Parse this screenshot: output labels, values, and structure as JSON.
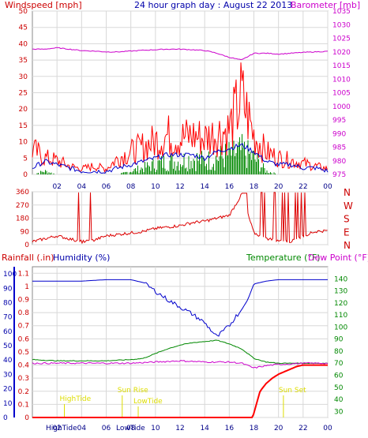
{
  "chart_data": [
    {
      "type": "line",
      "title": "24 hour graph day : August 22 2013",
      "ylabel_left": "Windspeed [mph]",
      "ylabel_right": "Barometer [mb]",
      "x_ticks": [
        "02",
        "04",
        "06",
        "08",
        "10",
        "12",
        "14",
        "16",
        "18",
        "20",
        "22",
        "00"
      ],
      "ylim_left": [
        0,
        50
      ],
      "y_ticks_left": [
        "0",
        "5",
        "10",
        "15",
        "20",
        "25",
        "30",
        "35",
        "40",
        "45",
        "50"
      ],
      "ylim_right": [
        975,
        1035
      ],
      "y_ticks_right": [
        "975",
        "980",
        "985",
        "990",
        "995",
        "1000",
        "1005",
        "1010",
        "1015",
        "1020",
        "1025",
        "1030",
        "1035"
      ],
      "grid": true,
      "colors": {
        "gust": "#ff0000",
        "average": "#0000cc",
        "speed": "#008800",
        "barometer": "#cc00cc"
      },
      "series": [
        {
          "key": "gust",
          "x": [
            0,
            1,
            2,
            3,
            4,
            5,
            6,
            7,
            8,
            9,
            10,
            11,
            12,
            13,
            14,
            15,
            16,
            17,
            18,
            19,
            20,
            21,
            22,
            23,
            24
          ],
          "values": [
            9,
            6,
            5,
            3,
            2,
            3,
            2,
            6,
            8,
            10,
            12,
            14,
            13,
            14,
            13,
            15,
            16,
            28,
            14,
            8,
            6,
            5,
            4,
            3,
            2
          ]
        },
        {
          "key": "average",
          "x": [
            0,
            1,
            2,
            3,
            4,
            5,
            6,
            7,
            8,
            9,
            10,
            11,
            12,
            13,
            14,
            15,
            16,
            17,
            18,
            19,
            20,
            21,
            22,
            23,
            24
          ],
          "values": [
            2,
            4,
            3,
            2,
            1,
            1,
            1,
            2,
            3,
            4,
            5,
            6,
            6,
            6,
            5,
            7,
            8,
            9,
            7,
            4,
            3,
            3,
            2,
            2,
            1
          ]
        },
        {
          "key": "speed",
          "x": [
            0,
            1,
            2,
            3,
            4,
            5,
            6,
            7,
            8,
            9,
            10,
            11,
            12,
            13,
            14,
            15,
            16,
            17,
            18,
            19,
            20,
            21,
            22,
            23,
            24
          ],
          "values": [
            0,
            1,
            0,
            0,
            0,
            0,
            0,
            0,
            1,
            2,
            3,
            4,
            4,
            5,
            4,
            5,
            6,
            7,
            5,
            1,
            0,
            0,
            0,
            0,
            0
          ]
        },
        {
          "key": "barometer",
          "x": [
            0,
            1,
            2,
            3,
            4,
            5,
            6,
            7,
            8,
            9,
            10,
            11,
            12,
            13,
            14,
            15,
            16,
            17,
            18,
            19,
            20,
            21,
            22,
            23,
            24
          ],
          "values": [
            1021,
            1021,
            1021.5,
            1021,
            1020.5,
            1020.3,
            1020,
            1020,
            1020.3,
            1020.6,
            1020.8,
            1021,
            1021,
            1020.8,
            1020.5,
            1019.5,
            1018,
            1017,
            1019.5,
            1019.5,
            1019.2,
            1019.5,
            1019.8,
            1020,
            1020.2
          ]
        }
      ]
    },
    {
      "type": "line",
      "ylim": [
        0,
        360
      ],
      "y_ticks": [
        "0",
        "90",
        "180",
        "270",
        "360"
      ],
      "compass": [
        "N",
        "W",
        "S",
        "E",
        "N"
      ],
      "x_ticks": [
        "02",
        "04",
        "06",
        "08",
        "10",
        "12",
        "14",
        "16",
        "18",
        "20",
        "22",
        "00"
      ],
      "grid": true,
      "color": "#dd0000",
      "series": [
        {
          "key": "direction",
          "x": [
            0,
            1,
            2,
            3,
            4,
            5,
            6,
            7,
            8,
            9,
            10,
            11,
            12,
            13,
            14,
            15,
            16,
            17,
            18,
            19,
            20,
            21,
            22,
            23,
            24
          ],
          "values": [
            20,
            40,
            60,
            40,
            20,
            30,
            60,
            70,
            80,
            90,
            110,
            120,
            130,
            150,
            160,
            180,
            200,
            340,
            80,
            40,
            30,
            20,
            60,
            90,
            95
          ]
        }
      ]
    },
    {
      "type": "line",
      "ylabel_left_1": "Rainfall (.in)",
      "ylabel_left_2": "Humidity (%)",
      "ylabel_right_1": "Temperature (°F)",
      "ylabel_right_2": "Dew Point (°F)",
      "y_ticks_rain": [
        "0",
        "0.1",
        "0.2",
        "0.3",
        "0.4",
        "0.5",
        "0.6",
        "0.7",
        "0.8",
        "0.9",
        "1",
        "1.1"
      ],
      "y_ticks_humidity": [
        "0",
        "10",
        "20",
        "30",
        "40",
        "50",
        "60",
        "70",
        "80",
        "90",
        "100"
      ],
      "y_ticks_temp": [
        "30",
        "40",
        "50",
        "60",
        "70",
        "80",
        "90",
        "100",
        "110",
        "120",
        "130",
        "140"
      ],
      "ylim_temp": [
        25,
        150
      ],
      "ylim_humidity": [
        0,
        105
      ],
      "x_ticks": [
        "02",
        "04",
        "06",
        "08",
        "10",
        "12",
        "14",
        "16",
        "18",
        "20",
        "22",
        "00"
      ],
      "x_extra_labels": [
        "HighTide",
        "LowTide"
      ],
      "annotations": [
        "HighTide",
        "Sun Rise",
        "LowTide",
        "Sun Set"
      ],
      "grid": true,
      "colors": {
        "humidity": "#0000cc",
        "temperature": "#008800",
        "dewpoint": "#cc00cc",
        "rain": "#ff0000",
        "annotation": "#dddd00"
      },
      "series": [
        {
          "key": "humidity",
          "x": [
            0,
            2,
            4,
            6,
            8,
            9,
            10,
            11,
            12,
            13,
            14,
            15,
            16,
            16.5,
            17,
            17.5,
            18,
            19,
            20,
            22,
            24
          ],
          "values": [
            95,
            95,
            95,
            96,
            96,
            94,
            88,
            82,
            77,
            72,
            66,
            56,
            64,
            70,
            75,
            82,
            93,
            95,
            96,
            96,
            96
          ]
        },
        {
          "key": "temperature",
          "x": [
            0,
            2,
            4,
            6,
            8,
            9,
            10,
            11,
            12,
            13,
            14,
            15,
            16,
            17,
            18,
            19,
            20,
            22,
            24
          ],
          "values": [
            73,
            72,
            72,
            72,
            73,
            74,
            78,
            82,
            85,
            87,
            88,
            89,
            86,
            82,
            74,
            71,
            70,
            70,
            70
          ]
        },
        {
          "key": "dewpoint",
          "x": [
            0,
            2,
            4,
            6,
            8,
            10,
            12,
            14,
            16,
            17,
            18,
            19,
            20,
            22,
            24
          ],
          "values": [
            70,
            70,
            70,
            70,
            70,
            71,
            72,
            71,
            71,
            70,
            66,
            68,
            69,
            70,
            70
          ]
        },
        {
          "key": "rain",
          "x": [
            0,
            17.9,
            18.2,
            18.5,
            19,
            19.5,
            20,
            20.5,
            21,
            21.5,
            22,
            24
          ],
          "values": [
            0,
            0,
            0.1,
            0.2,
            0.26,
            0.3,
            0.33,
            0.35,
            0.37,
            0.39,
            0.4,
            0.4
          ]
        }
      ]
    }
  ]
}
